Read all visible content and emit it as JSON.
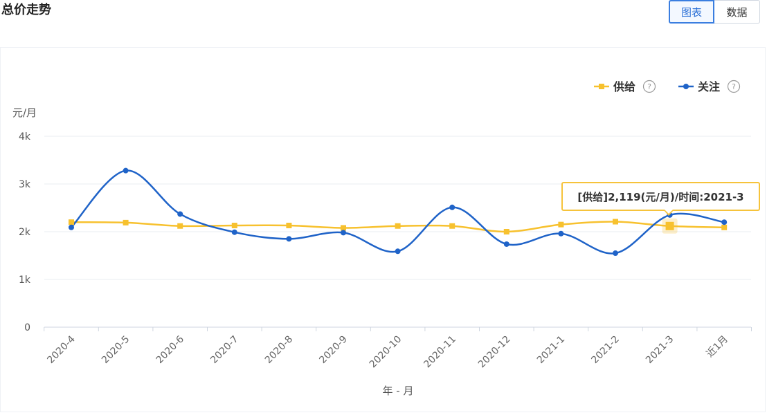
{
  "page": {
    "title": "总价走势",
    "view_toggle": {
      "chart_label": "图表",
      "data_label": "数据",
      "active": "chart"
    }
  },
  "chart_data": {
    "type": "line",
    "categories": [
      "2020-4",
      "2020-5",
      "2020-6",
      "2020-7",
      "2020-8",
      "2020-9",
      "2020-10",
      "2020-11",
      "2020-12",
      "2021-1",
      "2021-2",
      "2021-3",
      "近1月"
    ],
    "series": [
      {
        "name": "供给",
        "color": "#f7c12e",
        "values": [
          2200,
          2190,
          2120,
          2130,
          2130,
          2080,
          2120,
          2120,
          2000,
          2150,
          2210,
          2119,
          2090
        ]
      },
      {
        "name": "关注",
        "color": "#1f63c8",
        "values": [
          2090,
          3280,
          2370,
          1990,
          1850,
          1980,
          1590,
          2510,
          1740,
          1960,
          1550,
          2350,
          2200
        ]
      }
    ],
    "ylim": [
      0,
      4000
    ],
    "yticks": [
      {
        "value": 0,
        "label": "0"
      },
      {
        "value": 1000,
        "label": "1k"
      },
      {
        "value": 2000,
        "label": "2k"
      },
      {
        "value": 3000,
        "label": "3k"
      },
      {
        "value": 4000,
        "label": "4k"
      }
    ],
    "ylabel": "元/月",
    "xlabel": "年 - 月",
    "legend_help": "?",
    "grid": true,
    "legend_position": "top-right",
    "tooltip": {
      "text": "[供给]2,119(元/月)/时间:2021-3",
      "series_index": 0,
      "point_index": 11
    }
  }
}
